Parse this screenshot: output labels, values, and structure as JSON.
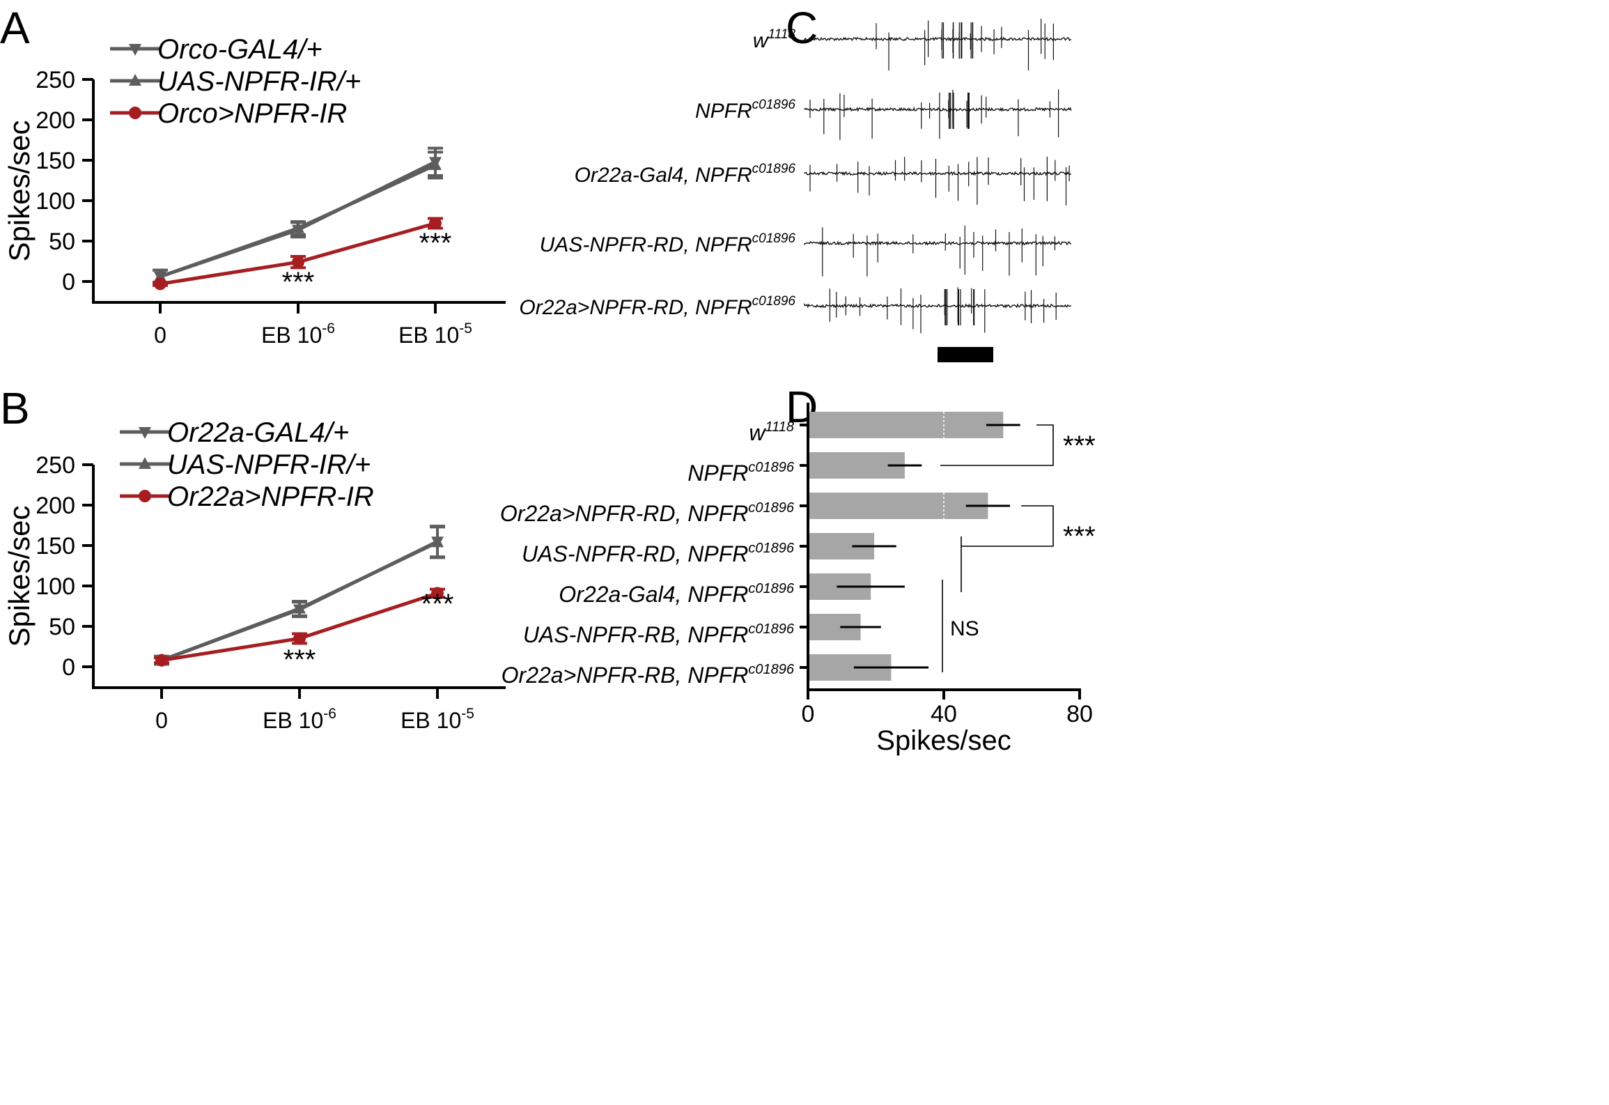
{
  "chart_data": [
    {
      "panel": "A",
      "type": "line",
      "ylabel": "Spikes/sec",
      "ylim": [
        -20,
        250
      ],
      "yticks": [
        0,
        50,
        100,
        150,
        200,
        250
      ],
      "categories": [
        "0",
        "EB 10",
        "EB 10"
      ],
      "category_exponents": [
        "",
        "-6",
        "-5"
      ],
      "series": [
        {
          "name": "Orco-GAL4/+",
          "marker": "triangle-down",
          "color": "#5d5d5d",
          "values": [
            6,
            64,
            148
          ],
          "errors": [
            8,
            9,
            17
          ]
        },
        {
          "name": "UAS-NPFR-IR/+",
          "marker": "triangle-up",
          "color": "#5d5d5d",
          "values": [
            6,
            66,
            144
          ],
          "errors": [
            8,
            8,
            16
          ]
        },
        {
          "name": "Orco>NPFR-IR",
          "marker": "circle",
          "color": "#a61e22",
          "values": [
            -3,
            24,
            72
          ],
          "errors": [
            2,
            7,
            6
          ]
        }
      ],
      "significance": [
        "",
        "***",
        "***"
      ],
      "legend_position": "top-left"
    },
    {
      "panel": "B",
      "type": "line",
      "ylabel": "Spikes/sec",
      "ylim": [
        -20,
        250
      ],
      "yticks": [
        0,
        50,
        100,
        150,
        200,
        250
      ],
      "categories": [
        "0",
        "EB 10",
        "EB 10"
      ],
      "category_exponents": [
        "",
        "-6",
        "-5"
      ],
      "series": [
        {
          "name": "Or22a-GAL4/+",
          "marker": "triangle-down",
          "color": "#5d5d5d",
          "values": [
            8,
            71,
            155
          ],
          "errors": [
            5,
            9,
            19
          ]
        },
        {
          "name": "UAS-NPFR-IR/+",
          "marker": "triangle-up",
          "color": "#5d5d5d",
          "values": [
            8,
            72,
            154
          ],
          "errors": [
            5,
            9,
            19
          ]
        },
        {
          "name": "Or22a>NPFR-IR",
          "marker": "circle",
          "color": "#a61e22",
          "values": [
            8,
            35,
            91
          ],
          "errors": [
            3,
            6,
            5
          ]
        }
      ],
      "significance": [
        "",
        "***",
        "***"
      ],
      "legend_position": "top-left"
    },
    {
      "panel": "D",
      "type": "bar",
      "orientation": "horizontal",
      "xlabel": "Spikes/sec",
      "xlim": [
        0,
        80
      ],
      "xticks": [
        0,
        40,
        80
      ],
      "categories": [
        {
          "base": "w",
          "sup": "1118",
          "pre": ""
        },
        {
          "base": "NPFR",
          "sup": "c01896",
          "pre": ""
        },
        {
          "base": "NPFR",
          "sup": "c01896",
          "pre": "Or22a>NPFR-RD, "
        },
        {
          "base": "NPFR",
          "sup": "c01896",
          "pre": "UAS-NPFR-RD, "
        },
        {
          "base": "NPFR",
          "sup": "c01896",
          "pre": "Or22a-Gal4, "
        },
        {
          "base": "NPFR",
          "sup": "c01896",
          "pre": "UAS-NPFR-RB, "
        },
        {
          "base": "NPFR",
          "sup": "c01896",
          "pre": "Or22a>NPFR-RB, "
        }
      ],
      "values": [
        57.5,
        28.5,
        53,
        19.5,
        18.5,
        15.5,
        24.5
      ],
      "errors": [
        5,
        5,
        6.5,
        6.5,
        10,
        6,
        11
      ],
      "bar_color": "#a6a6a6",
      "significance": [
        {
          "label": "***",
          "rows": [
            0,
            1
          ]
        },
        {
          "label": "***",
          "rows": [
            2,
            3
          ]
        },
        {
          "label": "NS",
          "rows": [
            4,
            5,
            6
          ]
        }
      ]
    }
  ],
  "panel_labels": [
    "A",
    "B",
    "C",
    "D"
  ],
  "panel_c": {
    "traces": [
      {
        "base": "w",
        "sup": "1118",
        "pre": ""
      },
      {
        "base": "NPFR",
        "sup": "c01896",
        "pre": ""
      },
      {
        "base": "NPFR",
        "sup": "c01896",
        "pre": "Or22a-Gal4, "
      },
      {
        "base": "NPFR",
        "sup": "c01896",
        "pre": "UAS-NPFR-RD, "
      },
      {
        "base": "NPFR",
        "sup": "c01896",
        "pre": "Or22a>NPFR-RD, "
      }
    ]
  }
}
